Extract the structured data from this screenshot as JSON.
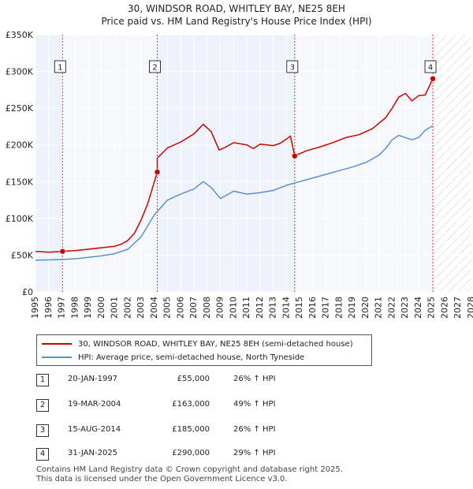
{
  "chart_data": {
    "type": "line",
    "title": "30, WINDSOR ROAD, WHITLEY BAY, NE25 8EH",
    "subtitle": "Price paid vs. HM Land Registry's House Price Index (HPI)",
    "xlabel": "",
    "ylabel": "",
    "xlim": [
      1995,
      2028
    ],
    "ylim": [
      0,
      350000
    ],
    "x_ticks": [
      1995,
      1996,
      1997,
      1998,
      1999,
      2000,
      2001,
      2002,
      2003,
      2004,
      2005,
      2006,
      2007,
      2008,
      2009,
      2010,
      2011,
      2012,
      2013,
      2014,
      2015,
      2016,
      2017,
      2018,
      2019,
      2020,
      2021,
      2022,
      2023,
      2024,
      2025,
      2026,
      2027,
      2028
    ],
    "y_ticks": [
      {
        "value": 0,
        "label": "£0"
      },
      {
        "value": 50000,
        "label": "£50K"
      },
      {
        "value": 100000,
        "label": "£100K"
      },
      {
        "value": 150000,
        "label": "£150K"
      },
      {
        "value": 200000,
        "label": "£200K"
      },
      {
        "value": 250000,
        "label": "£250K"
      },
      {
        "value": 300000,
        "label": "£300K"
      },
      {
        "value": 350000,
        "label": "£350K"
      }
    ],
    "forecast_start": 2025.1,
    "series": [
      {
        "name": "30, WINDSOR ROAD, WHITLEY BAY, NE25 8EH (semi-detached house)",
        "color": "#cc0000",
        "x": [
          1995.0,
          1996.0,
          1997.05,
          1998.0,
          1999.0,
          2000.0,
          2001.0,
          2001.5,
          2002.0,
          2002.5,
          2003.0,
          2003.5,
          2004.0,
          2004.22,
          2004.22,
          2005.0,
          2006.0,
          2007.0,
          2007.7,
          2008.3,
          2008.9,
          2009.3,
          2010.0,
          2011.0,
          2011.5,
          2012.0,
          2013.0,
          2013.5,
          2014.0,
          2014.3,
          2014.62,
          2014.62,
          2015.5,
          2016.5,
          2017.5,
          2018.5,
          2019.5,
          2020.5,
          2021.5,
          2022.0,
          2022.5,
          2023.0,
          2023.5,
          2024.0,
          2024.5,
          2025.08
        ],
        "values": [
          55000,
          54000,
          55000,
          56000,
          58000,
          60000,
          62000,
          65000,
          70000,
          80000,
          98000,
          120000,
          150000,
          163000,
          182000,
          196000,
          204000,
          215000,
          228000,
          218000,
          193000,
          196000,
          203000,
          200000,
          195000,
          201000,
          199000,
          202000,
          208000,
          212000,
          185000,
          185000,
          192000,
          197000,
          203000,
          210000,
          214000,
          222000,
          237000,
          250000,
          265000,
          270000,
          260000,
          267000,
          268000,
          290000
        ]
      },
      {
        "name": "HPI: Average price, semi-detached house, North Tyneside",
        "color": "#5b8fd0",
        "x": [
          1995.0,
          1996.0,
          1997.0,
          1998.0,
          1999.0,
          2000.0,
          2001.0,
          2002.0,
          2003.0,
          2004.0,
          2005.0,
          2006.0,
          2007.0,
          2007.7,
          2008.3,
          2009.0,
          2009.5,
          2010.0,
          2011.0,
          2012.0,
          2013.0,
          2014.0,
          2015.0,
          2016.0,
          2017.0,
          2018.0,
          2019.0,
          2020.0,
          2021.0,
          2021.5,
          2022.0,
          2022.5,
          2023.0,
          2023.5,
          2024.0,
          2024.5,
          2025.08
        ],
        "values": [
          43000,
          43500,
          44000,
          45000,
          47000,
          49000,
          52000,
          58000,
          75000,
          105000,
          125000,
          133000,
          140000,
          150000,
          142000,
          127000,
          132000,
          137000,
          133000,
          135000,
          138000,
          145000,
          150000,
          155000,
          160000,
          165000,
          170000,
          176000,
          186000,
          195000,
          207000,
          213000,
          210000,
          207000,
          210000,
          220000,
          226000
        ]
      }
    ],
    "sale_markers": [
      {
        "num": "1",
        "x": 1997.05,
        "value": 55000
      },
      {
        "num": "2",
        "x": 2004.22,
        "value": 163000
      },
      {
        "num": "3",
        "x": 2014.62,
        "value": 185000
      },
      {
        "num": "4",
        "x": 2025.08,
        "value": 290000
      }
    ]
  },
  "legend": {
    "property_label": "30, WINDSOR ROAD, WHITLEY BAY, NE25 8EH (semi-detached house)",
    "hpi_label": "HPI: Average price, semi-detached house, North Tyneside"
  },
  "sales": [
    {
      "num": "1",
      "date": "20-JAN-1997",
      "price": "£55,000",
      "hpi": "26% ↑ HPI"
    },
    {
      "num": "2",
      "date": "19-MAR-2004",
      "price": "£163,000",
      "hpi": "49% ↑ HPI"
    },
    {
      "num": "3",
      "date": "15-AUG-2014",
      "price": "£185,000",
      "hpi": "26% ↑ HPI"
    },
    {
      "num": "4",
      "date": "31-JAN-2025",
      "price": "£290,000",
      "hpi": "29% ↑ HPI"
    }
  ],
  "footer": {
    "line1": "Contains HM Land Registry data © Crown copyright and database right 2025.",
    "line2": "This data is licensed under the Open Government Licence v3.0."
  },
  "colors": {
    "plot_bg": "#eef2fb",
    "grid": "#ffffff",
    "property": "#cc0000",
    "hpi": "#5b8fd0"
  }
}
